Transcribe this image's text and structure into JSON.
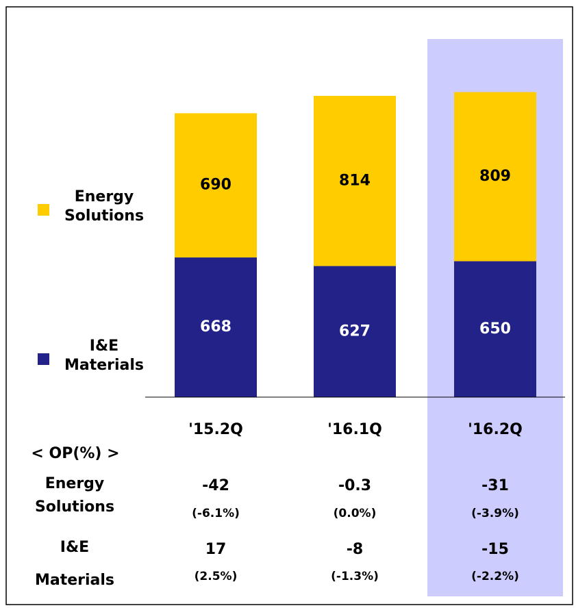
{
  "chart_data": {
    "type": "bar",
    "stacked": true,
    "categories": [
      "'15.2Q",
      "'16.1Q",
      "'16.2Q"
    ],
    "series": [
      {
        "name": "I&E Materials",
        "color": "#222288",
        "values": [
          668,
          627,
          650
        ]
      },
      {
        "name": "Energy Solutions",
        "color": "#ffcc00",
        "values": [
          690,
          814,
          809
        ]
      }
    ],
    "ylim": [
      0,
      1500
    ],
    "highlight_index": 2,
    "highlight_color": "#ccccff"
  },
  "op_table": {
    "title": "< OP(%) >",
    "rows": [
      {
        "name": "Energy Solutions",
        "values": [
          -42,
          -0.3,
          -31
        ],
        "margins": [
          -6.1,
          0.0,
          -3.9
        ],
        "margin_labels": [
          "(-6.1%)",
          "(0.0%)",
          "(-3.9%)"
        ]
      },
      {
        "name": "I&E Materials",
        "values": [
          17,
          -8,
          -15
        ],
        "margins": [
          2.5,
          -1.3,
          -2.2
        ],
        "margin_labels": [
          "(2.5%)",
          "(-1.3%)",
          "(-2.2%)"
        ]
      }
    ]
  }
}
